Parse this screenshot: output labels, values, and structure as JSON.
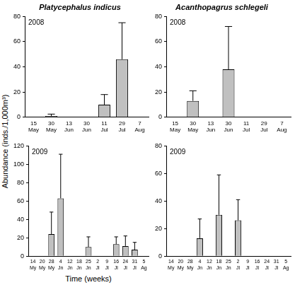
{
  "chart_data": [
    {
      "type": "bar",
      "title": "Platycephalus indicus",
      "annotation": "2008",
      "y_label": "Abundance (inds./1,000m³)",
      "categories": [
        "15 May",
        "30 May",
        "13 Jun",
        "30 Jun",
        "11 Jul",
        "29 Jul",
        "7 Aug"
      ],
      "values": [
        0,
        1,
        0,
        0,
        10,
        46,
        0
      ],
      "errors": [
        0,
        1.5,
        0,
        0,
        8,
        29,
        0
      ],
      "color": "#c0c0c0",
      "ylim": [
        0,
        80
      ],
      "yticks": [
        0,
        20,
        40,
        60,
        80
      ],
      "grid": false
    },
    {
      "type": "bar",
      "title": "Acanthopagrus schlegeli",
      "annotation": "2008",
      "categories": [
        "15 May",
        "30 May",
        "13 Jun",
        "30 Jun",
        "11 Jul",
        "29 Jul",
        "7 Aug"
      ],
      "values": [
        0,
        13,
        0,
        38,
        0,
        0,
        0
      ],
      "errors": [
        0,
        8,
        0,
        34,
        0,
        0,
        0
      ],
      "color": "#c0c0c0",
      "ylim": [
        0,
        80
      ],
      "yticks": [
        0,
        20,
        40,
        60,
        80
      ],
      "grid": false
    },
    {
      "type": "bar",
      "annotation": "2009",
      "x_label": "Time (weeks)",
      "categories": [
        "14 My",
        "20 My",
        "28 My",
        "4 Jn",
        "12 Jn",
        "18 Jn",
        "25 Jn",
        "2 Jl",
        "9 Jl",
        "16 Jl",
        "24 Jl",
        "31 Jl",
        "5 Ag"
      ],
      "values": [
        0,
        0,
        24,
        63,
        0,
        0,
        10,
        0,
        0,
        13,
        11,
        7,
        0
      ],
      "errors": [
        0,
        0,
        24,
        48,
        0,
        0,
        11,
        0,
        0,
        8,
        11,
        8,
        0
      ],
      "color": "#c0c0c0",
      "ylim": [
        0,
        120
      ],
      "yticks": [
        0,
        20,
        40,
        60,
        80,
        100,
        120
      ],
      "grid": false
    },
    {
      "type": "bar",
      "annotation": "2009",
      "categories": [
        "14 My",
        "20 My",
        "28 My",
        "4 Jn",
        "12 Jn",
        "18 Jn",
        "25 Jn",
        "2 Jl",
        "9 Jl",
        "16 Jl",
        "24 Jl",
        "31 Jl",
        "5 Ag"
      ],
      "values": [
        0,
        0,
        0,
        13,
        0,
        30,
        0,
        26,
        0,
        0,
        0,
        0,
        0
      ],
      "errors": [
        0,
        0,
        0,
        14,
        0,
        29,
        0,
        15,
        0,
        0,
        0,
        0,
        0
      ],
      "color": "#c0c0c0",
      "ylim": [
        0,
        80
      ],
      "yticks": [
        0,
        20,
        40,
        60,
        80
      ],
      "grid": false
    }
  ]
}
